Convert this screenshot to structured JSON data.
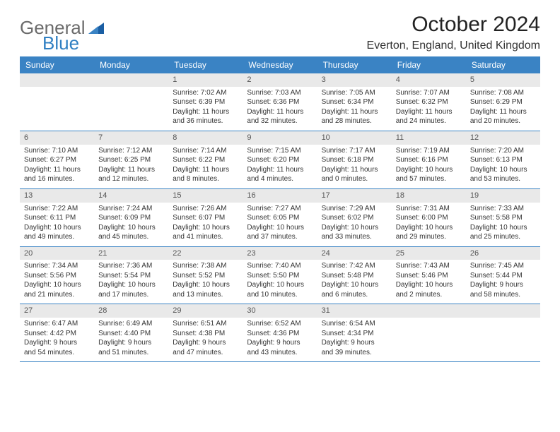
{
  "logo": {
    "text1": "General",
    "text2": "Blue"
  },
  "title": "October 2024",
  "location": "Everton, England, United Kingdom",
  "colors": {
    "header_bg": "#3a83c4",
    "header_text": "#ffffff",
    "daynum_bg": "#e9e9e9",
    "logo_gray": "#6b6b6b",
    "logo_blue": "#2f7fc2",
    "week_border": "#3a83c4"
  },
  "typography": {
    "title_fontsize": 30,
    "location_fontsize": 16,
    "dayheader_fontsize": 12,
    "daynum_fontsize": 11,
    "body_fontsize": 10
  },
  "day_headers": [
    "Sunday",
    "Monday",
    "Tuesday",
    "Wednesday",
    "Thursday",
    "Friday",
    "Saturday"
  ],
  "weeks": [
    [
      null,
      null,
      {
        "num": "1",
        "sunrise": "Sunrise: 7:02 AM",
        "sunset": "Sunset: 6:39 PM",
        "daylight": "Daylight: 11 hours and 36 minutes."
      },
      {
        "num": "2",
        "sunrise": "Sunrise: 7:03 AM",
        "sunset": "Sunset: 6:36 PM",
        "daylight": "Daylight: 11 hours and 32 minutes."
      },
      {
        "num": "3",
        "sunrise": "Sunrise: 7:05 AM",
        "sunset": "Sunset: 6:34 PM",
        "daylight": "Daylight: 11 hours and 28 minutes."
      },
      {
        "num": "4",
        "sunrise": "Sunrise: 7:07 AM",
        "sunset": "Sunset: 6:32 PM",
        "daylight": "Daylight: 11 hours and 24 minutes."
      },
      {
        "num": "5",
        "sunrise": "Sunrise: 7:08 AM",
        "sunset": "Sunset: 6:29 PM",
        "daylight": "Daylight: 11 hours and 20 minutes."
      }
    ],
    [
      {
        "num": "6",
        "sunrise": "Sunrise: 7:10 AM",
        "sunset": "Sunset: 6:27 PM",
        "daylight": "Daylight: 11 hours and 16 minutes."
      },
      {
        "num": "7",
        "sunrise": "Sunrise: 7:12 AM",
        "sunset": "Sunset: 6:25 PM",
        "daylight": "Daylight: 11 hours and 12 minutes."
      },
      {
        "num": "8",
        "sunrise": "Sunrise: 7:14 AM",
        "sunset": "Sunset: 6:22 PM",
        "daylight": "Daylight: 11 hours and 8 minutes."
      },
      {
        "num": "9",
        "sunrise": "Sunrise: 7:15 AM",
        "sunset": "Sunset: 6:20 PM",
        "daylight": "Daylight: 11 hours and 4 minutes."
      },
      {
        "num": "10",
        "sunrise": "Sunrise: 7:17 AM",
        "sunset": "Sunset: 6:18 PM",
        "daylight": "Daylight: 11 hours and 0 minutes."
      },
      {
        "num": "11",
        "sunrise": "Sunrise: 7:19 AM",
        "sunset": "Sunset: 6:16 PM",
        "daylight": "Daylight: 10 hours and 57 minutes."
      },
      {
        "num": "12",
        "sunrise": "Sunrise: 7:20 AM",
        "sunset": "Sunset: 6:13 PM",
        "daylight": "Daylight: 10 hours and 53 minutes."
      }
    ],
    [
      {
        "num": "13",
        "sunrise": "Sunrise: 7:22 AM",
        "sunset": "Sunset: 6:11 PM",
        "daylight": "Daylight: 10 hours and 49 minutes."
      },
      {
        "num": "14",
        "sunrise": "Sunrise: 7:24 AM",
        "sunset": "Sunset: 6:09 PM",
        "daylight": "Daylight: 10 hours and 45 minutes."
      },
      {
        "num": "15",
        "sunrise": "Sunrise: 7:26 AM",
        "sunset": "Sunset: 6:07 PM",
        "daylight": "Daylight: 10 hours and 41 minutes."
      },
      {
        "num": "16",
        "sunrise": "Sunrise: 7:27 AM",
        "sunset": "Sunset: 6:05 PM",
        "daylight": "Daylight: 10 hours and 37 minutes."
      },
      {
        "num": "17",
        "sunrise": "Sunrise: 7:29 AM",
        "sunset": "Sunset: 6:02 PM",
        "daylight": "Daylight: 10 hours and 33 minutes."
      },
      {
        "num": "18",
        "sunrise": "Sunrise: 7:31 AM",
        "sunset": "Sunset: 6:00 PM",
        "daylight": "Daylight: 10 hours and 29 minutes."
      },
      {
        "num": "19",
        "sunrise": "Sunrise: 7:33 AM",
        "sunset": "Sunset: 5:58 PM",
        "daylight": "Daylight: 10 hours and 25 minutes."
      }
    ],
    [
      {
        "num": "20",
        "sunrise": "Sunrise: 7:34 AM",
        "sunset": "Sunset: 5:56 PM",
        "daylight": "Daylight: 10 hours and 21 minutes."
      },
      {
        "num": "21",
        "sunrise": "Sunrise: 7:36 AM",
        "sunset": "Sunset: 5:54 PM",
        "daylight": "Daylight: 10 hours and 17 minutes."
      },
      {
        "num": "22",
        "sunrise": "Sunrise: 7:38 AM",
        "sunset": "Sunset: 5:52 PM",
        "daylight": "Daylight: 10 hours and 13 minutes."
      },
      {
        "num": "23",
        "sunrise": "Sunrise: 7:40 AM",
        "sunset": "Sunset: 5:50 PM",
        "daylight": "Daylight: 10 hours and 10 minutes."
      },
      {
        "num": "24",
        "sunrise": "Sunrise: 7:42 AM",
        "sunset": "Sunset: 5:48 PM",
        "daylight": "Daylight: 10 hours and 6 minutes."
      },
      {
        "num": "25",
        "sunrise": "Sunrise: 7:43 AM",
        "sunset": "Sunset: 5:46 PM",
        "daylight": "Daylight: 10 hours and 2 minutes."
      },
      {
        "num": "26",
        "sunrise": "Sunrise: 7:45 AM",
        "sunset": "Sunset: 5:44 PM",
        "daylight": "Daylight: 9 hours and 58 minutes."
      }
    ],
    [
      {
        "num": "27",
        "sunrise": "Sunrise: 6:47 AM",
        "sunset": "Sunset: 4:42 PM",
        "daylight": "Daylight: 9 hours and 54 minutes."
      },
      {
        "num": "28",
        "sunrise": "Sunrise: 6:49 AM",
        "sunset": "Sunset: 4:40 PM",
        "daylight": "Daylight: 9 hours and 51 minutes."
      },
      {
        "num": "29",
        "sunrise": "Sunrise: 6:51 AM",
        "sunset": "Sunset: 4:38 PM",
        "daylight": "Daylight: 9 hours and 47 minutes."
      },
      {
        "num": "30",
        "sunrise": "Sunrise: 6:52 AM",
        "sunset": "Sunset: 4:36 PM",
        "daylight": "Daylight: 9 hours and 43 minutes."
      },
      {
        "num": "31",
        "sunrise": "Sunrise: 6:54 AM",
        "sunset": "Sunset: 4:34 PM",
        "daylight": "Daylight: 9 hours and 39 minutes."
      },
      null,
      null
    ]
  ]
}
